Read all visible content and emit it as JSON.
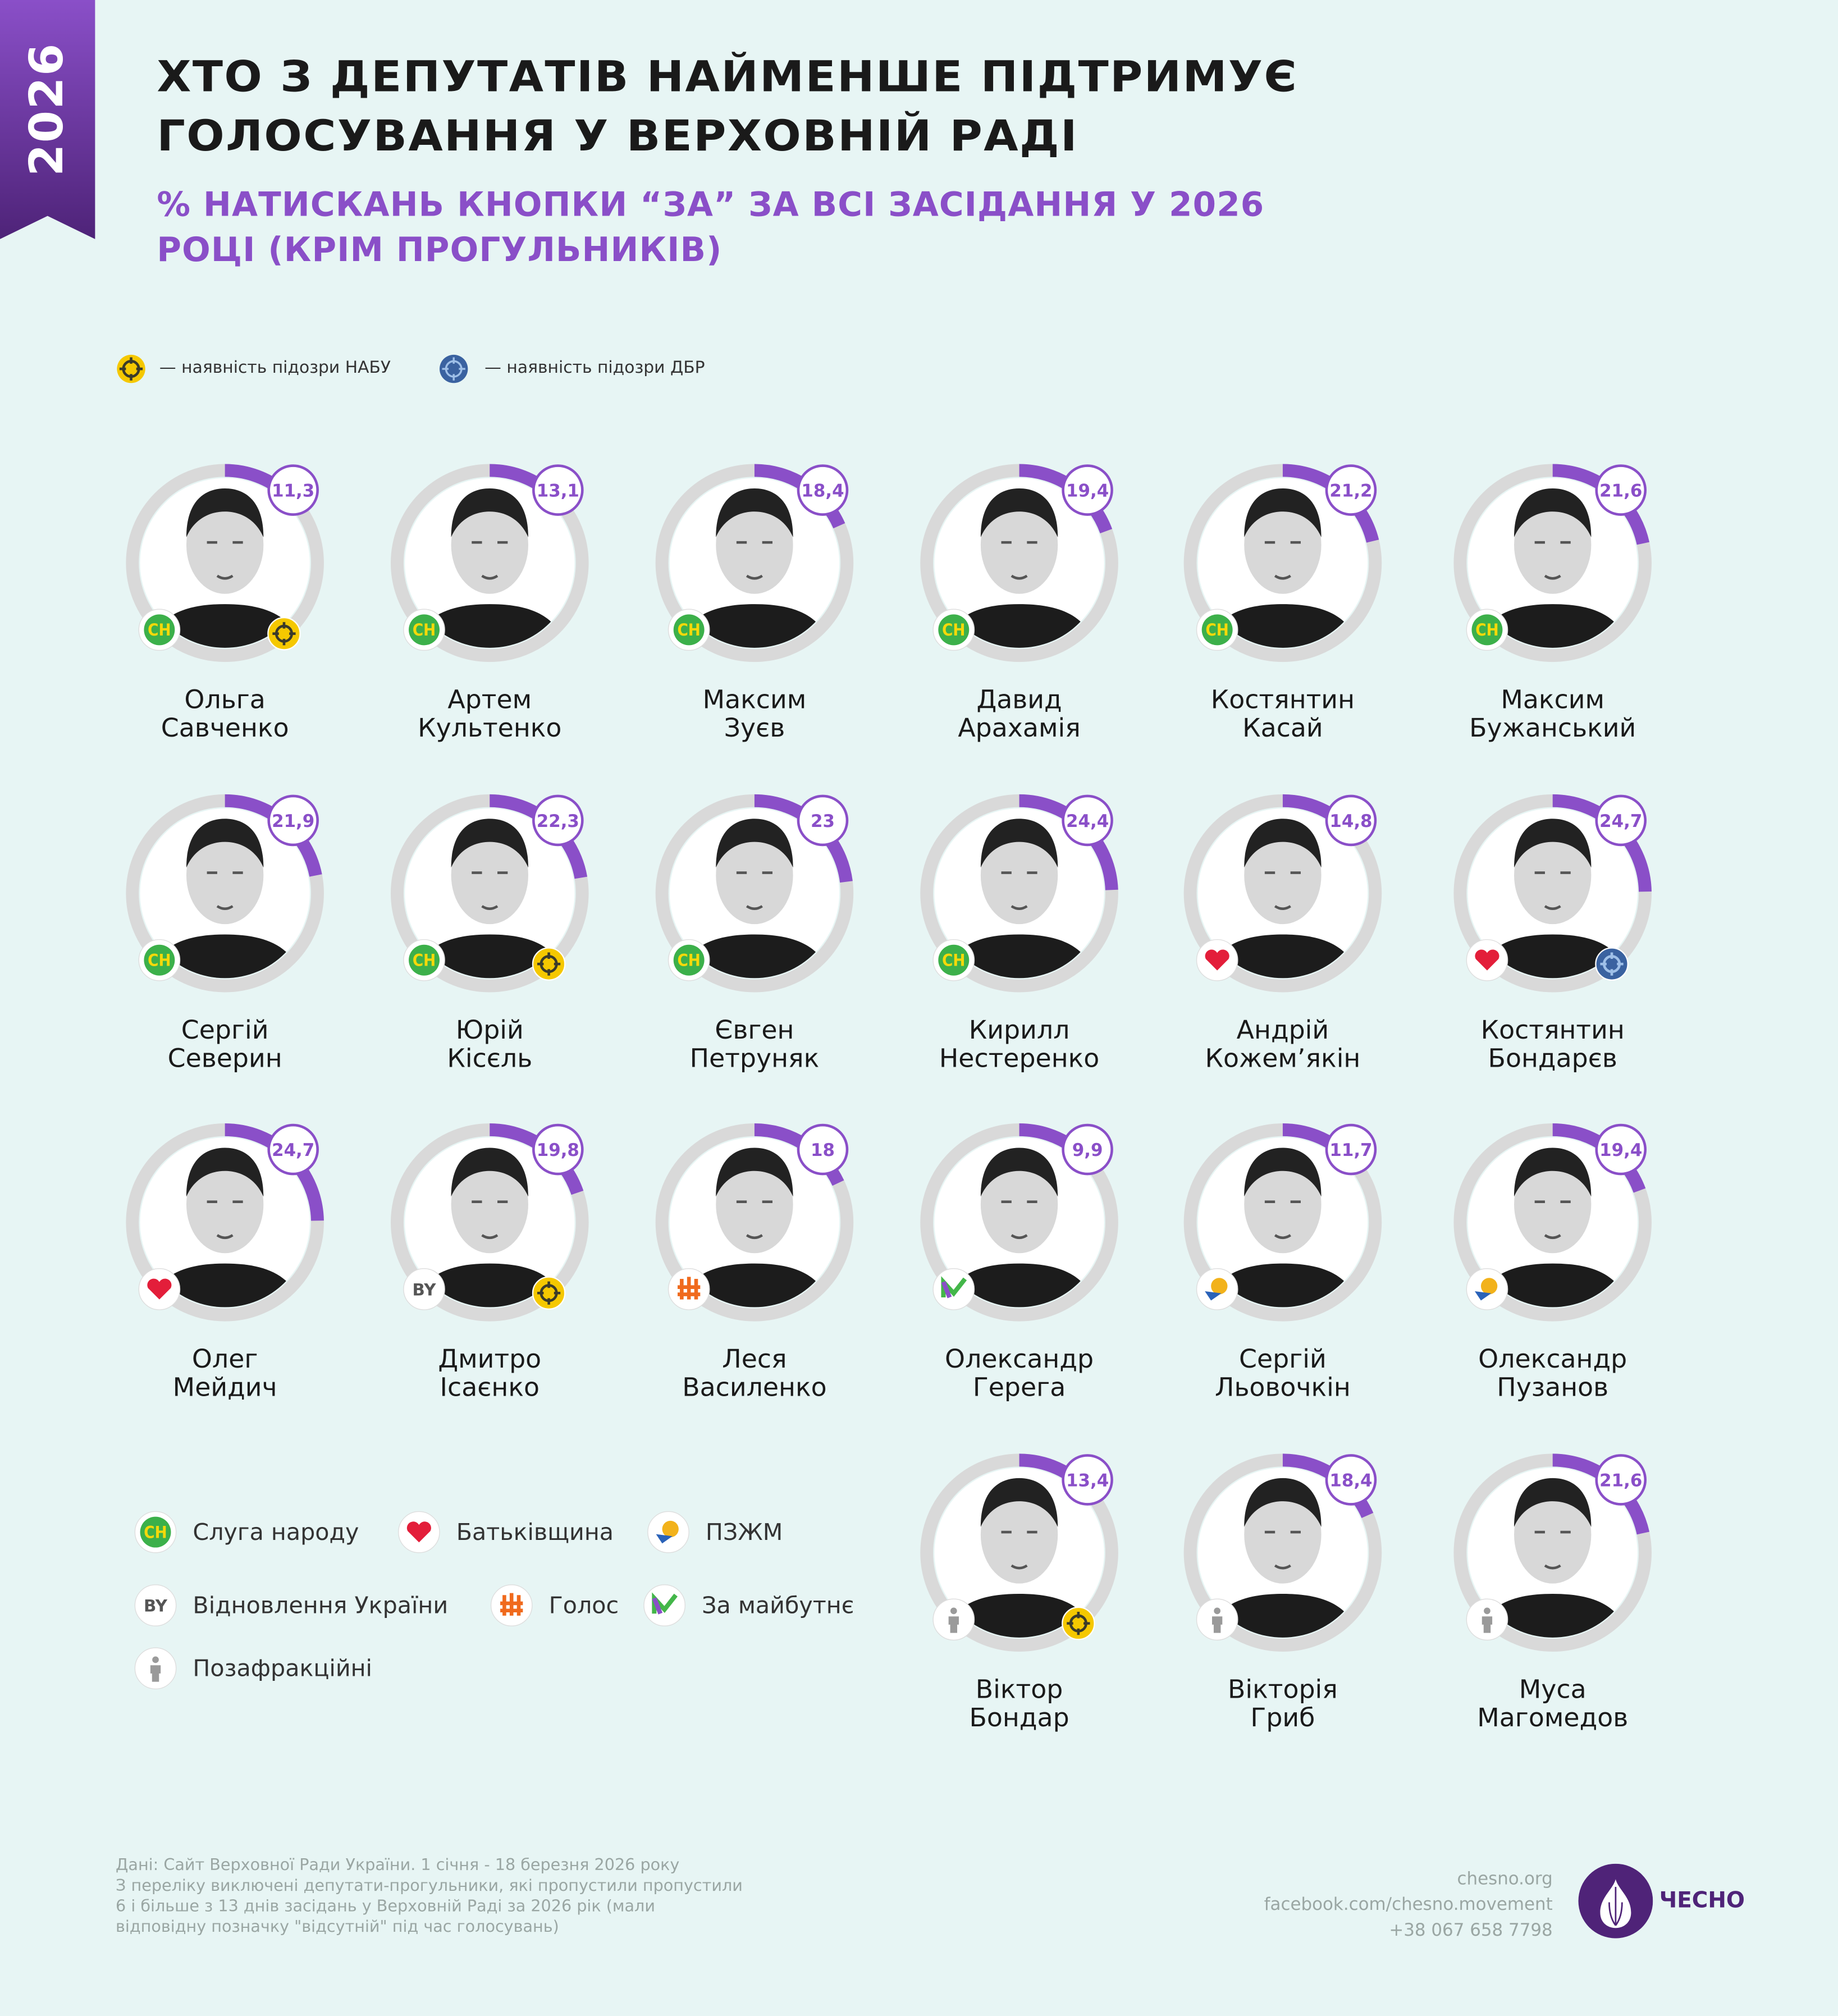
{
  "ribbon": {
    "year": "2026"
  },
  "header": {
    "title_line1": "ХТО З ДЕПУТАТІВ НАЙМЕНШЕ ПІДТРИМУЄ",
    "title_line2": "ГОЛОСУВАННЯ  У ВЕРХОВНІЙ РАДІ",
    "subtitle_line1": "% НАТИСКАНЬ КНОПКИ “ЗА” ЗА ВСІ ЗАСІДАННЯ У 2026",
    "subtitle_line2": "РОЦІ (КРІМ ПРОГУЛЬНИКІВ)"
  },
  "suspicion_legend": {
    "nabu": "— наявність підозри НАБУ",
    "dbr": "— наявність підозри ДБР"
  },
  "colors": {
    "accent": "#8a4fc8",
    "ring": "#d9d9d9",
    "background": "#e7f5f4",
    "nabu": "#f5c800",
    "dbr": "#3a62a0"
  },
  "deputies": [
    {
      "first": "Ольга",
      "last": "Савченко",
      "value": 11.3,
      "label": "11,3",
      "party": "sn",
      "suspicion": "nabu"
    },
    {
      "first": "Артем",
      "last": "Культенко",
      "value": 13.1,
      "label": "13,1",
      "party": "sn",
      "suspicion": ""
    },
    {
      "first": "Максим",
      "last": "Зуєв",
      "value": 18.4,
      "label": "18,4",
      "party": "sn",
      "suspicion": ""
    },
    {
      "first": "Давид",
      "last": "Арахамія",
      "value": 19.4,
      "label": "19,4",
      "party": "sn",
      "suspicion": ""
    },
    {
      "first": "Костянтин",
      "last": "Касай",
      "value": 21.2,
      "label": "21,2",
      "party": "sn",
      "suspicion": ""
    },
    {
      "first": "Максим",
      "last": "Бужанський",
      "value": 21.6,
      "label": "21,6",
      "party": "sn",
      "suspicion": ""
    },
    {
      "first": "Сергій",
      "last": "Северин",
      "value": 21.9,
      "label": "21,9",
      "party": "sn",
      "suspicion": ""
    },
    {
      "first": "Юрій",
      "last": "Кісєль",
      "value": 22.3,
      "label": "22,3",
      "party": "sn",
      "suspicion": "nabu"
    },
    {
      "first": "Євген",
      "last": "Петруняк",
      "value": 23,
      "label": "23",
      "party": "sn",
      "suspicion": ""
    },
    {
      "first": "Кирилл",
      "last": "Нестеренко",
      "value": 24.4,
      "label": "24,4",
      "party": "sn",
      "suspicion": ""
    },
    {
      "first": "Андрій",
      "last": "Кожем’якін",
      "value": 14.8,
      "label": "14,8",
      "party": "batk",
      "suspicion": ""
    },
    {
      "first": "Костянтин",
      "last": "Бондарєв",
      "value": 24.7,
      "label": "24,7",
      "party": "batk",
      "suspicion": "dbr"
    },
    {
      "first": "Олег",
      "last": "Мейдич",
      "value": 24.7,
      "label": "24,7",
      "party": "batk",
      "suspicion": ""
    },
    {
      "first": "Дмитро",
      "last": "Ісаєнко",
      "value": 19.8,
      "label": "19,8",
      "party": "vu",
      "suspicion": "nabu"
    },
    {
      "first": "Леся",
      "last": "Василенко",
      "value": 18,
      "label": "18",
      "party": "golos",
      "suspicion": ""
    },
    {
      "first": "Олександр",
      "last": "Герега",
      "value": 9.9,
      "label": "9,9",
      "party": "zm",
      "suspicion": ""
    },
    {
      "first": "Сергій",
      "last": "Льовочкін",
      "value": 11.7,
      "label": "11,7",
      "party": "pzzm",
      "suspicion": ""
    },
    {
      "first": "Олександр",
      "last": "Пузанов",
      "value": 19.4,
      "label": "19,4",
      "party": "pzzm",
      "suspicion": ""
    },
    {
      "first": "Віктор",
      "last": "Бондар",
      "value": 13.4,
      "label": "13,4",
      "party": "na",
      "suspicion": "nabu"
    },
    {
      "first": "Вікторія",
      "last": "Гриб",
      "value": 18.4,
      "label": "18,4",
      "party": "na",
      "suspicion": ""
    },
    {
      "first": "Муса",
      "last": "Магомедов",
      "value": 21.6,
      "label": "21,6",
      "party": "na",
      "suspicion": ""
    }
  ],
  "parties": {
    "sn": {
      "name": "Слуга народу",
      "badge": "CH",
      "color": "#3cb04a"
    },
    "batk": {
      "name": "Батьківщина",
      "badge": "heart-icon",
      "color": "#e31e3a"
    },
    "pzzm": {
      "name": "ПЗЖМ",
      "badge": "sunflower-icon",
      "color": "#f2b21b"
    },
    "vu": {
      "name": "Відновлення України",
      "badge": "BY",
      "color": "#555555"
    },
    "golos": {
      "name": "Голос",
      "badge": "golos-icon",
      "color": "#f06a1d"
    },
    "zm": {
      "name": "За майбутнє",
      "badge": "check-m-icon",
      "color": "#43b649"
    },
    "na": {
      "name": "Позафракційні",
      "badge": "person-icon",
      "color": "#9a9a9a"
    }
  },
  "footer": {
    "source_lines": [
      "Дані: Сайт Верховної Ради України. 1 січня - 18 березня 2026 року",
      "З переліку виключені депутати-прогульники, які пропустили пропустили",
      "6 і більше з 13 днів засідань у Верховній Раді за 2026 рік (мали",
      "відповідну позначку \"відсутній\" під час голосувань)"
    ],
    "site": "chesno.org",
    "facebook": "facebook.com/chesno.movement",
    "phone": "+38 067 658 7798",
    "brand": "ЧЕСНО"
  }
}
